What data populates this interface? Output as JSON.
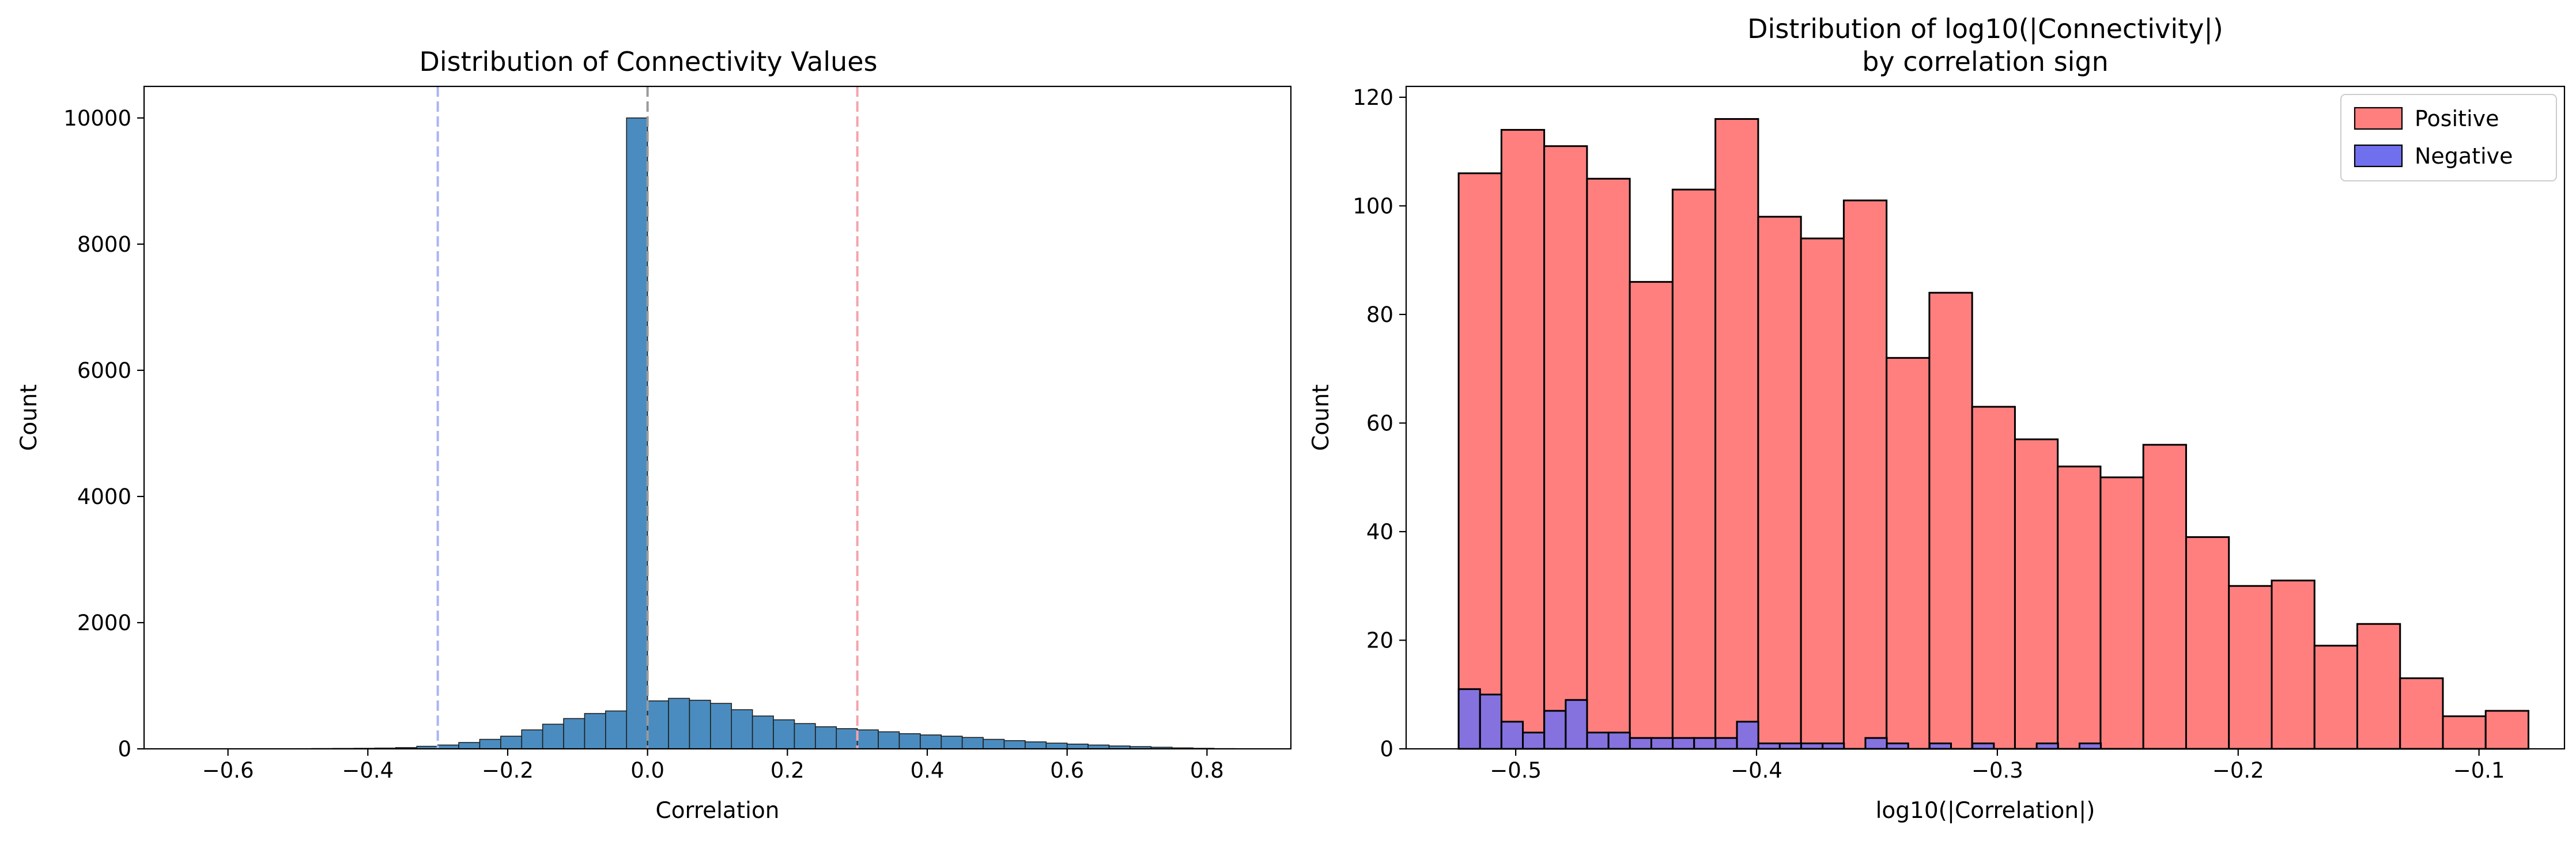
{
  "chart_data": [
    {
      "type": "bar",
      "title": "Distribution of Connectivity Values",
      "xlabel": "Correlation",
      "ylabel": "Count",
      "xlim": [
        -0.72,
        0.92
      ],
      "ylim": [
        0,
        10500
      ],
      "xticks": [
        -0.6,
        -0.4,
        -0.2,
        0.0,
        0.2,
        0.4,
        0.6,
        0.8
      ],
      "xtick_labels": [
        "−0.6",
        "−0.4",
        "−0.2",
        "0.0",
        "0.2",
        "0.4",
        "0.6",
        "0.8"
      ],
      "yticks": [
        0,
        2000,
        4000,
        6000,
        8000,
        10000
      ],
      "ytick_labels": [
        "0",
        "2000",
        "4000",
        "6000",
        "8000",
        "10000"
      ],
      "grid": false,
      "bar_color": "#4a8cbf",
      "bin_width": 0.03,
      "bin_starts": [
        -0.66,
        -0.63,
        -0.6,
        -0.57,
        -0.54,
        -0.51,
        -0.48,
        -0.45,
        -0.42,
        -0.39,
        -0.36,
        -0.33,
        -0.3,
        -0.27,
        -0.24,
        -0.21,
        -0.18,
        -0.15,
        -0.12,
        -0.09,
        -0.06,
        -0.03,
        0.0,
        0.03,
        0.06,
        0.09,
        0.12,
        0.15,
        0.18,
        0.21,
        0.24,
        0.27,
        0.3,
        0.33,
        0.36,
        0.39,
        0.42,
        0.45,
        0.48,
        0.51,
        0.54,
        0.57,
        0.6,
        0.63,
        0.66,
        0.69,
        0.72,
        0.75,
        0.78,
        0.81
      ],
      "values": [
        0,
        0,
        0,
        0,
        0,
        2,
        4,
        6,
        8,
        12,
        20,
        40,
        60,
        100,
        150,
        200,
        300,
        390,
        480,
        560,
        600,
        10000,
        760,
        800,
        770,
        720,
        620,
        520,
        460,
        400,
        350,
        320,
        300,
        270,
        240,
        220,
        200,
        180,
        150,
        130,
        110,
        90,
        75,
        60,
        45,
        35,
        25,
        15,
        8,
        3
      ],
      "vlines": [
        {
          "x": -0.3,
          "color": "#aab4f5"
        },
        {
          "x": 0.0,
          "color": "#9a9a9a"
        },
        {
          "x": 0.3,
          "color": "#f5a3ad"
        }
      ]
    },
    {
      "type": "bar",
      "title": "Distribution of log10(|Connectivity|)",
      "subtitle": "by correlation sign",
      "xlabel": "log10(|Correlation|)",
      "ylabel": "Count",
      "xlim": [
        -0.5455,
        -0.0645
      ],
      "ylim": [
        0,
        122
      ],
      "xticks": [
        -0.5,
        -0.4,
        -0.3,
        -0.2,
        -0.1
      ],
      "xtick_labels": [
        "−0.5",
        "−0.4",
        "−0.3",
        "−0.2",
        "−0.1"
      ],
      "yticks": [
        0,
        20,
        40,
        60,
        80,
        100,
        120
      ],
      "ytick_labels": [
        "0",
        "20",
        "40",
        "60",
        "80",
        "100",
        "120"
      ],
      "grid": false,
      "legend_placement": "top-right",
      "series": [
        {
          "name": "Positive",
          "color": "#ff7f7f",
          "bin_start": -0.5237,
          "bin_width": 0.01777,
          "values": [
            106,
            114,
            111,
            105,
            86,
            103,
            116,
            98,
            94,
            101,
            72,
            84,
            63,
            57,
            52,
            50,
            56,
            39,
            30,
            31,
            19,
            23,
            13,
            6,
            7
          ]
        },
        {
          "name": "Negative",
          "color": "#7070ee",
          "bin_start": -0.5237,
          "bin_width": 0.00889,
          "values": [
            11,
            10,
            5,
            3,
            7,
            9,
            3,
            3,
            2,
            2,
            2,
            2,
            2,
            5,
            1,
            1,
            1,
            1,
            0,
            2,
            1,
            0,
            1,
            0,
            1,
            0,
            0,
            1,
            0,
            1
          ]
        }
      ]
    }
  ]
}
